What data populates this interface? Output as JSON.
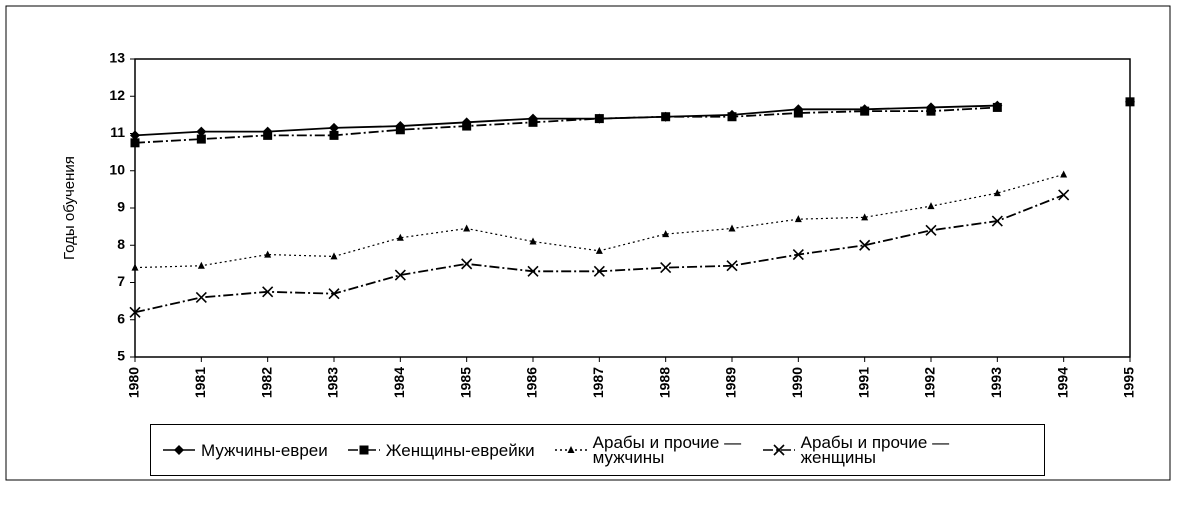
{
  "chart_data": {
    "type": "line",
    "ylabel": "Годы обучения",
    "x": [
      1980,
      1981,
      1982,
      1983,
      1984,
      1985,
      1986,
      1987,
      1988,
      1989,
      1990,
      1991,
      1992,
      1993,
      1994,
      1995
    ],
    "xlim": [
      1980,
      1995
    ],
    "xticks": [
      1980,
      1981,
      1982,
      1983,
      1984,
      1985,
      1986,
      1987,
      1988,
      1989,
      1990,
      1991,
      1992,
      1993,
      1994,
      1995
    ],
    "ylim": [
      5,
      13
    ],
    "yticks": [
      5,
      6,
      7,
      8,
      9,
      10,
      11,
      12,
      13
    ],
    "grid": false,
    "legend": "bottom",
    "series": [
      {
        "name": "Мужчины-евреи",
        "color": "#000000",
        "marker": "diamond",
        "style": "solid",
        "values": [
          10.95,
          11.05,
          11.05,
          11.15,
          11.2,
          11.3,
          11.4,
          11.4,
          11.45,
          11.5,
          11.65,
          11.65,
          11.7,
          11.75,
          null,
          11.85
        ]
      },
      {
        "name": "Женщины-еврейки",
        "color": "#000000",
        "marker": "square",
        "style": "dashdot",
        "values": [
          10.75,
          10.85,
          10.95,
          10.95,
          11.1,
          11.2,
          11.3,
          11.4,
          11.45,
          11.45,
          11.55,
          11.6,
          11.6,
          11.7,
          null,
          11.85
        ]
      },
      {
        "name": "Арабы и прочие — мужчины",
        "color": "#000000",
        "marker": "triangle",
        "style": "dotted",
        "values": [
          7.4,
          7.45,
          7.75,
          7.7,
          8.2,
          8.45,
          8.1,
          7.85,
          8.3,
          8.45,
          8.7,
          8.75,
          9.05,
          9.4,
          9.9,
          null
        ]
      },
      {
        "name": "Арабы и прочие — женщины",
        "color": "#000000",
        "marker": "x",
        "style": "dashdot",
        "values": [
          6.2,
          6.6,
          6.75,
          6.7,
          7.2,
          7.5,
          7.3,
          7.3,
          7.4,
          7.45,
          7.75,
          8.0,
          8.4,
          8.65,
          9.35,
          null
        ]
      }
    ]
  }
}
